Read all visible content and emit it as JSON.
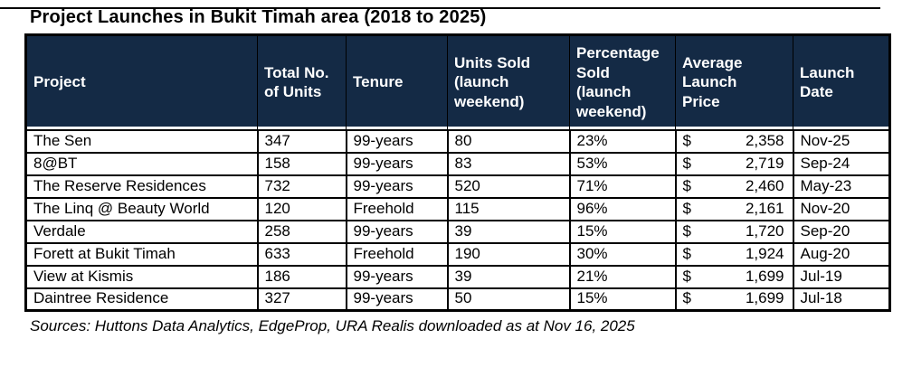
{
  "page": {
    "title": "Project Launches in Bukit Timah area (2018 to 2025)",
    "source_note": "Sources: Huttons Data Analytics, EdgeProp, URA Realis downloaded as at Nov 16, 2025"
  },
  "colors": {
    "header_bg": "#142A45",
    "header_text": "#FFFFFF",
    "border": "#000000",
    "body_text": "#000000",
    "background": "#FFFFFF"
  },
  "chart_data": {
    "type": "table",
    "title": "Project Launches in Bukit Timah area (2018 to 2025)",
    "currency_symbol": "$",
    "columns": [
      {
        "key": "project",
        "label": "Project"
      },
      {
        "key": "total_units",
        "label": "Total No. of Units"
      },
      {
        "key": "tenure",
        "label": "Tenure"
      },
      {
        "key": "units_sold",
        "label": "Units Sold (launch weekend)"
      },
      {
        "key": "pct_sold",
        "label": "Percentage Sold (launch weekend)"
      },
      {
        "key": "avg_price",
        "label": "Average Launch Price"
      },
      {
        "key": "launch_date",
        "label": "Launch Date"
      }
    ],
    "rows": [
      {
        "project": "The Sen",
        "total_units": "347",
        "tenure": "99-years",
        "units_sold": "80",
        "pct_sold": "23%",
        "avg_price": "2,358",
        "launch_date": "Nov-25"
      },
      {
        "project": "8@BT",
        "total_units": "158",
        "tenure": "99-years",
        "units_sold": "83",
        "pct_sold": "53%",
        "avg_price": "2,719",
        "launch_date": "Sep-24"
      },
      {
        "project": "The Reserve Residences",
        "total_units": "732",
        "tenure": "99-years",
        "units_sold": "520",
        "pct_sold": "71%",
        "avg_price": "2,460",
        "launch_date": "May-23"
      },
      {
        "project": "The Linq @ Beauty World",
        "total_units": "120",
        "tenure": "Freehold",
        "units_sold": "115",
        "pct_sold": "96%",
        "avg_price": "2,161",
        "launch_date": "Nov-20"
      },
      {
        "project": "Verdale",
        "total_units": "258",
        "tenure": "99-years",
        "units_sold": "39",
        "pct_sold": "15%",
        "avg_price": "1,720",
        "launch_date": "Sep-20"
      },
      {
        "project": "Forett at Bukit Timah",
        "total_units": "633",
        "tenure": "Freehold",
        "units_sold": "190",
        "pct_sold": "30%",
        "avg_price": "1,924",
        "launch_date": "Aug-20"
      },
      {
        "project": "View at Kismis",
        "total_units": "186",
        "tenure": "99-years",
        "units_sold": "39",
        "pct_sold": "21%",
        "avg_price": "1,699",
        "launch_date": "Jul-19"
      },
      {
        "project": "Daintree Residence",
        "total_units": "327",
        "tenure": "99-years",
        "units_sold": "50",
        "pct_sold": "15%",
        "avg_price": "1,699",
        "launch_date": "Jul-18"
      }
    ],
    "source": "Sources: Huttons Data Analytics, EdgeProp, URA Realis downloaded as at Nov 16, 2025"
  }
}
